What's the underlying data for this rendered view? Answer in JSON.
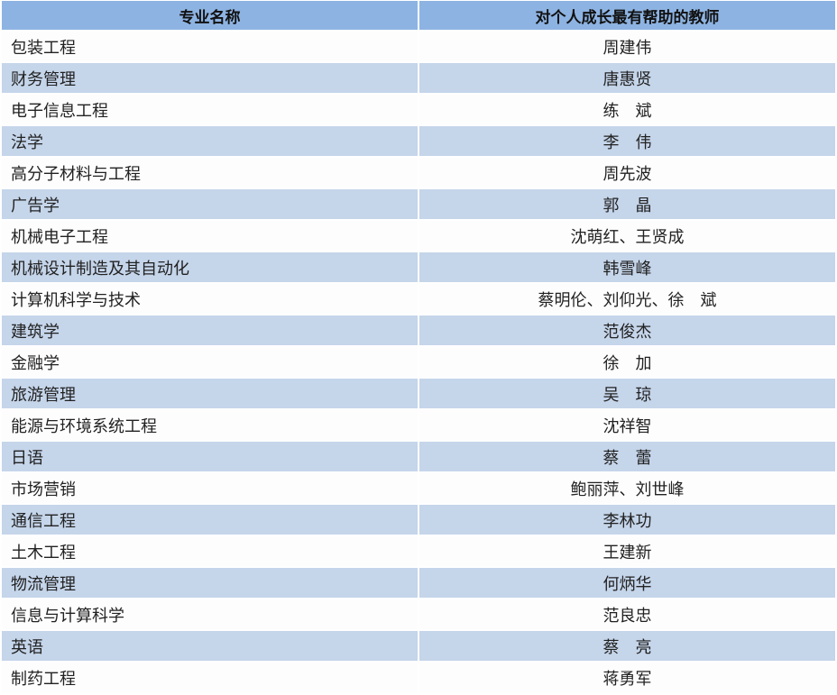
{
  "table": {
    "headers": [
      "专业名称",
      "对个人成长最有帮助的教师"
    ],
    "header_color": "#8db3e2",
    "stripe_color": "#c5d5ea",
    "rows": [
      [
        "包装工程",
        "周建伟"
      ],
      [
        "财务管理",
        "唐惠贤"
      ],
      [
        "电子信息工程",
        "练　斌"
      ],
      [
        "法学",
        "李　伟"
      ],
      [
        "高分子材料与工程",
        "周先波"
      ],
      [
        "广告学",
        "郭　晶"
      ],
      [
        "机械电子工程",
        "沈萌红、王贤成"
      ],
      [
        "机械设计制造及其自动化",
        "韩雪峰"
      ],
      [
        "计算机科学与技术",
        "蔡明伦、刘仰光、徐　斌"
      ],
      [
        "建筑学",
        "范俊杰"
      ],
      [
        "金融学",
        "徐　加"
      ],
      [
        "旅游管理",
        "吴　琼"
      ],
      [
        "能源与环境系统工程",
        "沈祥智"
      ],
      [
        "日语",
        "蔡　蕾"
      ],
      [
        "市场营销",
        "鲍丽萍、刘世峰"
      ],
      [
        "通信工程",
        "李林功"
      ],
      [
        "土木工程",
        "王建新"
      ],
      [
        "物流管理",
        "何炳华"
      ],
      [
        "信息与计算科学",
        "范良忠"
      ],
      [
        "英语",
        "蔡　亮"
      ],
      [
        "制药工程",
        "蒋勇军"
      ]
    ]
  }
}
